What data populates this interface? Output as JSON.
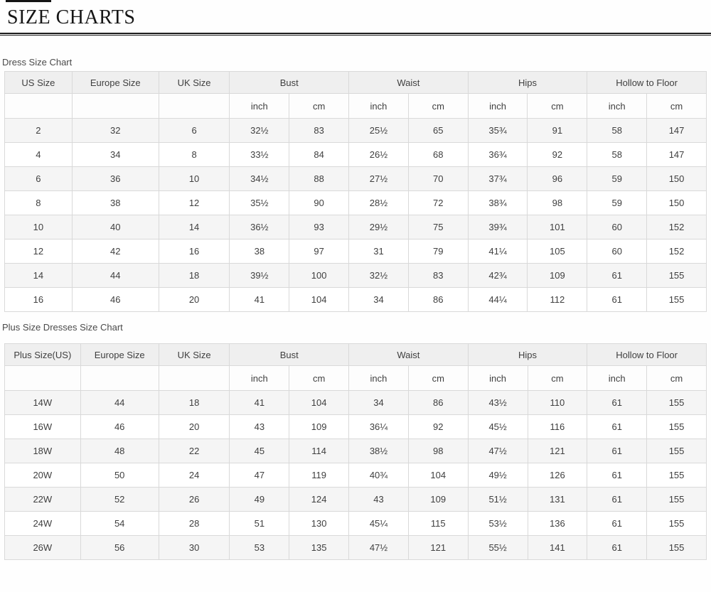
{
  "page": {
    "title": "SIZE CHARTS"
  },
  "colors": {
    "title_text": "#161616",
    "rule": "#1b1b1b",
    "header_bg": "#efefef",
    "row_alt_bg": "#f5f5f5",
    "border": "#d9d9d9",
    "text": "#3f3f3f"
  },
  "size_tables": [
    {
      "label": "Dress Size Chart",
      "id_columns": [
        "US Size",
        "Europe Size",
        "UK Size"
      ],
      "measure_groups": [
        "Bust",
        "Waist",
        "Hips",
        "Hollow to Floor"
      ],
      "unit_labels": [
        "inch",
        "cm"
      ],
      "rows": [
        [
          "2",
          "32",
          "6",
          "32½",
          "83",
          "25½",
          "65",
          "35¾",
          "91",
          "58",
          "147"
        ],
        [
          "4",
          "34",
          "8",
          "33½",
          "84",
          "26½",
          "68",
          "36¾",
          "92",
          "58",
          "147"
        ],
        [
          "6",
          "36",
          "10",
          "34½",
          "88",
          "27½",
          "70",
          "37¾",
          "96",
          "59",
          "150"
        ],
        [
          "8",
          "38",
          "12",
          "35½",
          "90",
          "28½",
          "72",
          "38¾",
          "98",
          "59",
          "150"
        ],
        [
          "10",
          "40",
          "14",
          "36½",
          "93",
          "29½",
          "75",
          "39¾",
          "101",
          "60",
          "152"
        ],
        [
          "12",
          "42",
          "16",
          "38",
          "97",
          "31",
          "79",
          "41¼",
          "105",
          "60",
          "152"
        ],
        [
          "14",
          "44",
          "18",
          "39½",
          "100",
          "32½",
          "83",
          "42¾",
          "109",
          "61",
          "155"
        ],
        [
          "16",
          "46",
          "20",
          "41",
          "104",
          "34",
          "86",
          "44¼",
          "112",
          "61",
          "155"
        ]
      ]
    },
    {
      "label": "Plus Size Dresses Size Chart",
      "id_columns": [
        "Plus Size(US)",
        "Europe Size",
        "UK Size"
      ],
      "measure_groups": [
        "Bust",
        "Waist",
        "Hips",
        "Hollow to Floor"
      ],
      "unit_labels": [
        "inch",
        "cm"
      ],
      "rows": [
        [
          "14W",
          "44",
          "18",
          "41",
          "104",
          "34",
          "86",
          "43½",
          "110",
          "61",
          "155"
        ],
        [
          "16W",
          "46",
          "20",
          "43",
          "109",
          "36¼",
          "92",
          "45½",
          "116",
          "61",
          "155"
        ],
        [
          "18W",
          "48",
          "22",
          "45",
          "114",
          "38½",
          "98",
          "47½",
          "121",
          "61",
          "155"
        ],
        [
          "20W",
          "50",
          "24",
          "47",
          "119",
          "40¾",
          "104",
          "49½",
          "126",
          "61",
          "155"
        ],
        [
          "22W",
          "52",
          "26",
          "49",
          "124",
          "43",
          "109",
          "51½",
          "131",
          "61",
          "155"
        ],
        [
          "24W",
          "54",
          "28",
          "51",
          "130",
          "45¼",
          "115",
          "53½",
          "136",
          "61",
          "155"
        ],
        [
          "26W",
          "56",
          "30",
          "53",
          "135",
          "47½",
          "121",
          "55½",
          "141",
          "61",
          "155"
        ]
      ]
    }
  ]
}
